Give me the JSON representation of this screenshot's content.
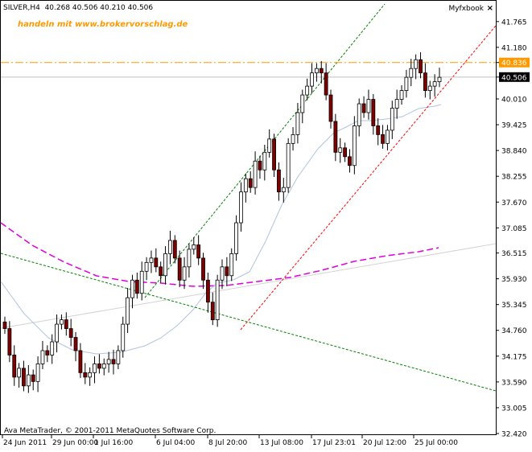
{
  "header": {
    "symbol": "SILVER,H4",
    "quote": "40.268 40.506 40.210 40.506",
    "promo": "handeln mit www.brokervorschlag.de",
    "brand": "Myfxbook",
    "close_glyph": "×"
  },
  "footer": {
    "copyright": "Ava MetaTrader, © 2001-2011 MetaQuotes Software Corp."
  },
  "colors": {
    "background": "#ffffff",
    "bull_candle": "#ffffff",
    "bear_candle": "#800000",
    "candle_outline": "#000000",
    "ma_fast": "#b0c4de",
    "ma_slow": "#dd00dd",
    "long_trend": "#d3d3d3",
    "channel_upper": "#008000",
    "channel_lower": "#ff0000",
    "down_trend": "#008000",
    "horizontal_level": "#ff9900",
    "current_price_tag": "#000000"
  },
  "chart_data": {
    "type": "candlestick",
    "symbol": "SILVER",
    "timeframe": "H4",
    "ylim": [
      32.42,
      42.0
    ],
    "y_ticks": [
      "41.765",
      "41.180",
      "40.836",
      "40.506",
      "40.010",
      "39.425",
      "38.840",
      "38.255",
      "37.670",
      "37.085",
      "36.515",
      "35.930",
      "35.345",
      "34.760",
      "34.175",
      "33.590",
      "33.005",
      "32.420"
    ],
    "x_ticks": [
      "24 Jun 2011",
      "29 Jun 00:00",
      "1 Jul 16:00",
      "6 Jul 04:00",
      "8 Jul 20:00",
      "13 Jul 08:00",
      "17 Jul 23:01",
      "20 Jul 12:00",
      "25 Jul 00:00"
    ],
    "level_price": 40.836,
    "current_price": 40.506,
    "last_bar": {
      "open": 40.268,
      "high": 40.506,
      "low": 40.21,
      "close": 40.506
    },
    "candles_close": [
      34.8,
      34.2,
      33.7,
      33.9,
      33.5,
      33.75,
      33.6,
      34.0,
      34.3,
      34.2,
      34.5,
      34.9,
      35.0,
      34.8,
      34.6,
      34.3,
      33.8,
      33.7,
      33.8,
      34.0,
      33.9,
      34.0,
      34.1,
      34.0,
      34.3,
      34.9,
      35.5,
      35.9,
      35.6,
      36.1,
      36.3,
      36.4,
      36.2,
      36.0,
      36.5,
      36.8,
      36.4,
      35.9,
      36.2,
      36.6,
      36.7,
      36.4,
      35.9,
      35.4,
      35.0,
      35.9,
      36.2,
      36.0,
      36.5,
      37.2,
      37.9,
      38.2,
      38.0,
      38.6,
      38.4,
      38.8,
      39.1,
      38.4,
      37.9,
      38.0,
      39.0,
      39.2,
      39.7,
      40.1,
      40.3,
      40.6,
      40.7,
      40.6,
      40.1,
      39.5,
      38.8,
      38.9,
      38.7,
      38.5,
      39.4,
      39.9,
      39.7,
      40.0,
      39.4,
      39.2,
      39.0,
      39.3,
      39.8,
      40.0,
      40.2,
      40.5,
      40.7,
      40.9,
      40.6,
      40.2,
      40.3,
      40.4,
      40.5
    ]
  }
}
